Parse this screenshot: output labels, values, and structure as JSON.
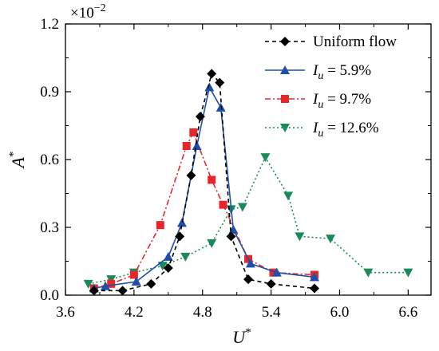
{
  "chart_data": {
    "type": "line",
    "xlabel": "U*",
    "ylabel": "A*",
    "scale_note": "×10⁻²",
    "xlim": [
      3.6,
      6.8
    ],
    "ylim": [
      0.0,
      1.2
    ],
    "xticks": [
      "3.6",
      "4.2",
      "4.8",
      "5.4",
      "6.0",
      "6.6"
    ],
    "yticks": [
      "0.0",
      "0.3",
      "0.6",
      "0.9",
      "1.2"
    ],
    "legend_position": "top-right",
    "grid": false,
    "series": [
      {
        "name": "Uniform flow",
        "color": "#000000",
        "marker": "diamond",
        "dash": "dashed",
        "x": [
          3.85,
          4.1,
          4.35,
          4.5,
          4.6,
          4.7,
          4.78,
          4.88,
          4.95,
          5.05,
          5.2,
          5.4,
          5.78
        ],
        "y": [
          0.02,
          0.02,
          0.05,
          0.12,
          0.26,
          0.53,
          0.79,
          0.98,
          0.94,
          0.26,
          0.07,
          0.05,
          0.03
        ]
      },
      {
        "name": "Iu = 5.9%",
        "label_main": "I",
        "label_sub": "u",
        "label_rest": " = 5.9%",
        "color": "#1f4fa8",
        "marker": "triangle-up",
        "dash": "solid",
        "x": [
          3.85,
          3.95,
          4.22,
          4.5,
          4.62,
          4.75,
          4.86,
          4.96,
          5.07,
          5.22,
          5.45,
          5.78
        ],
        "y": [
          0.03,
          0.04,
          0.06,
          0.17,
          0.32,
          0.66,
          0.92,
          0.83,
          0.29,
          0.14,
          0.1,
          0.08
        ]
      },
      {
        "name": "Iu = 9.7%",
        "label_main": "I",
        "label_sub": "u",
        "label_rest": " = 9.7%",
        "color": "#e8262a",
        "marker": "square",
        "dash": "dashdot",
        "x": [
          3.85,
          4.0,
          4.2,
          4.43,
          4.66,
          4.72,
          4.88,
          4.98,
          5.2,
          5.42,
          5.78
        ],
        "y": [
          0.03,
          0.05,
          0.09,
          0.31,
          0.66,
          0.72,
          0.51,
          0.4,
          0.16,
          0.1,
          0.09
        ]
      },
      {
        "name": "Iu = 12.6%",
        "label_main": "I",
        "label_sub": "u",
        "label_rest": " = 12.6%",
        "color": "#1b8a5a",
        "marker": "triangle-down",
        "dash": "dotted",
        "x": [
          3.8,
          4.0,
          4.2,
          4.45,
          4.65,
          4.88,
          5.05,
          5.15,
          5.35,
          5.55,
          5.65,
          5.92,
          6.25,
          6.6
        ],
        "y": [
          0.05,
          0.07,
          0.1,
          0.13,
          0.17,
          0.23,
          0.38,
          0.39,
          0.61,
          0.44,
          0.26,
          0.25,
          0.1,
          0.1
        ]
      }
    ]
  }
}
